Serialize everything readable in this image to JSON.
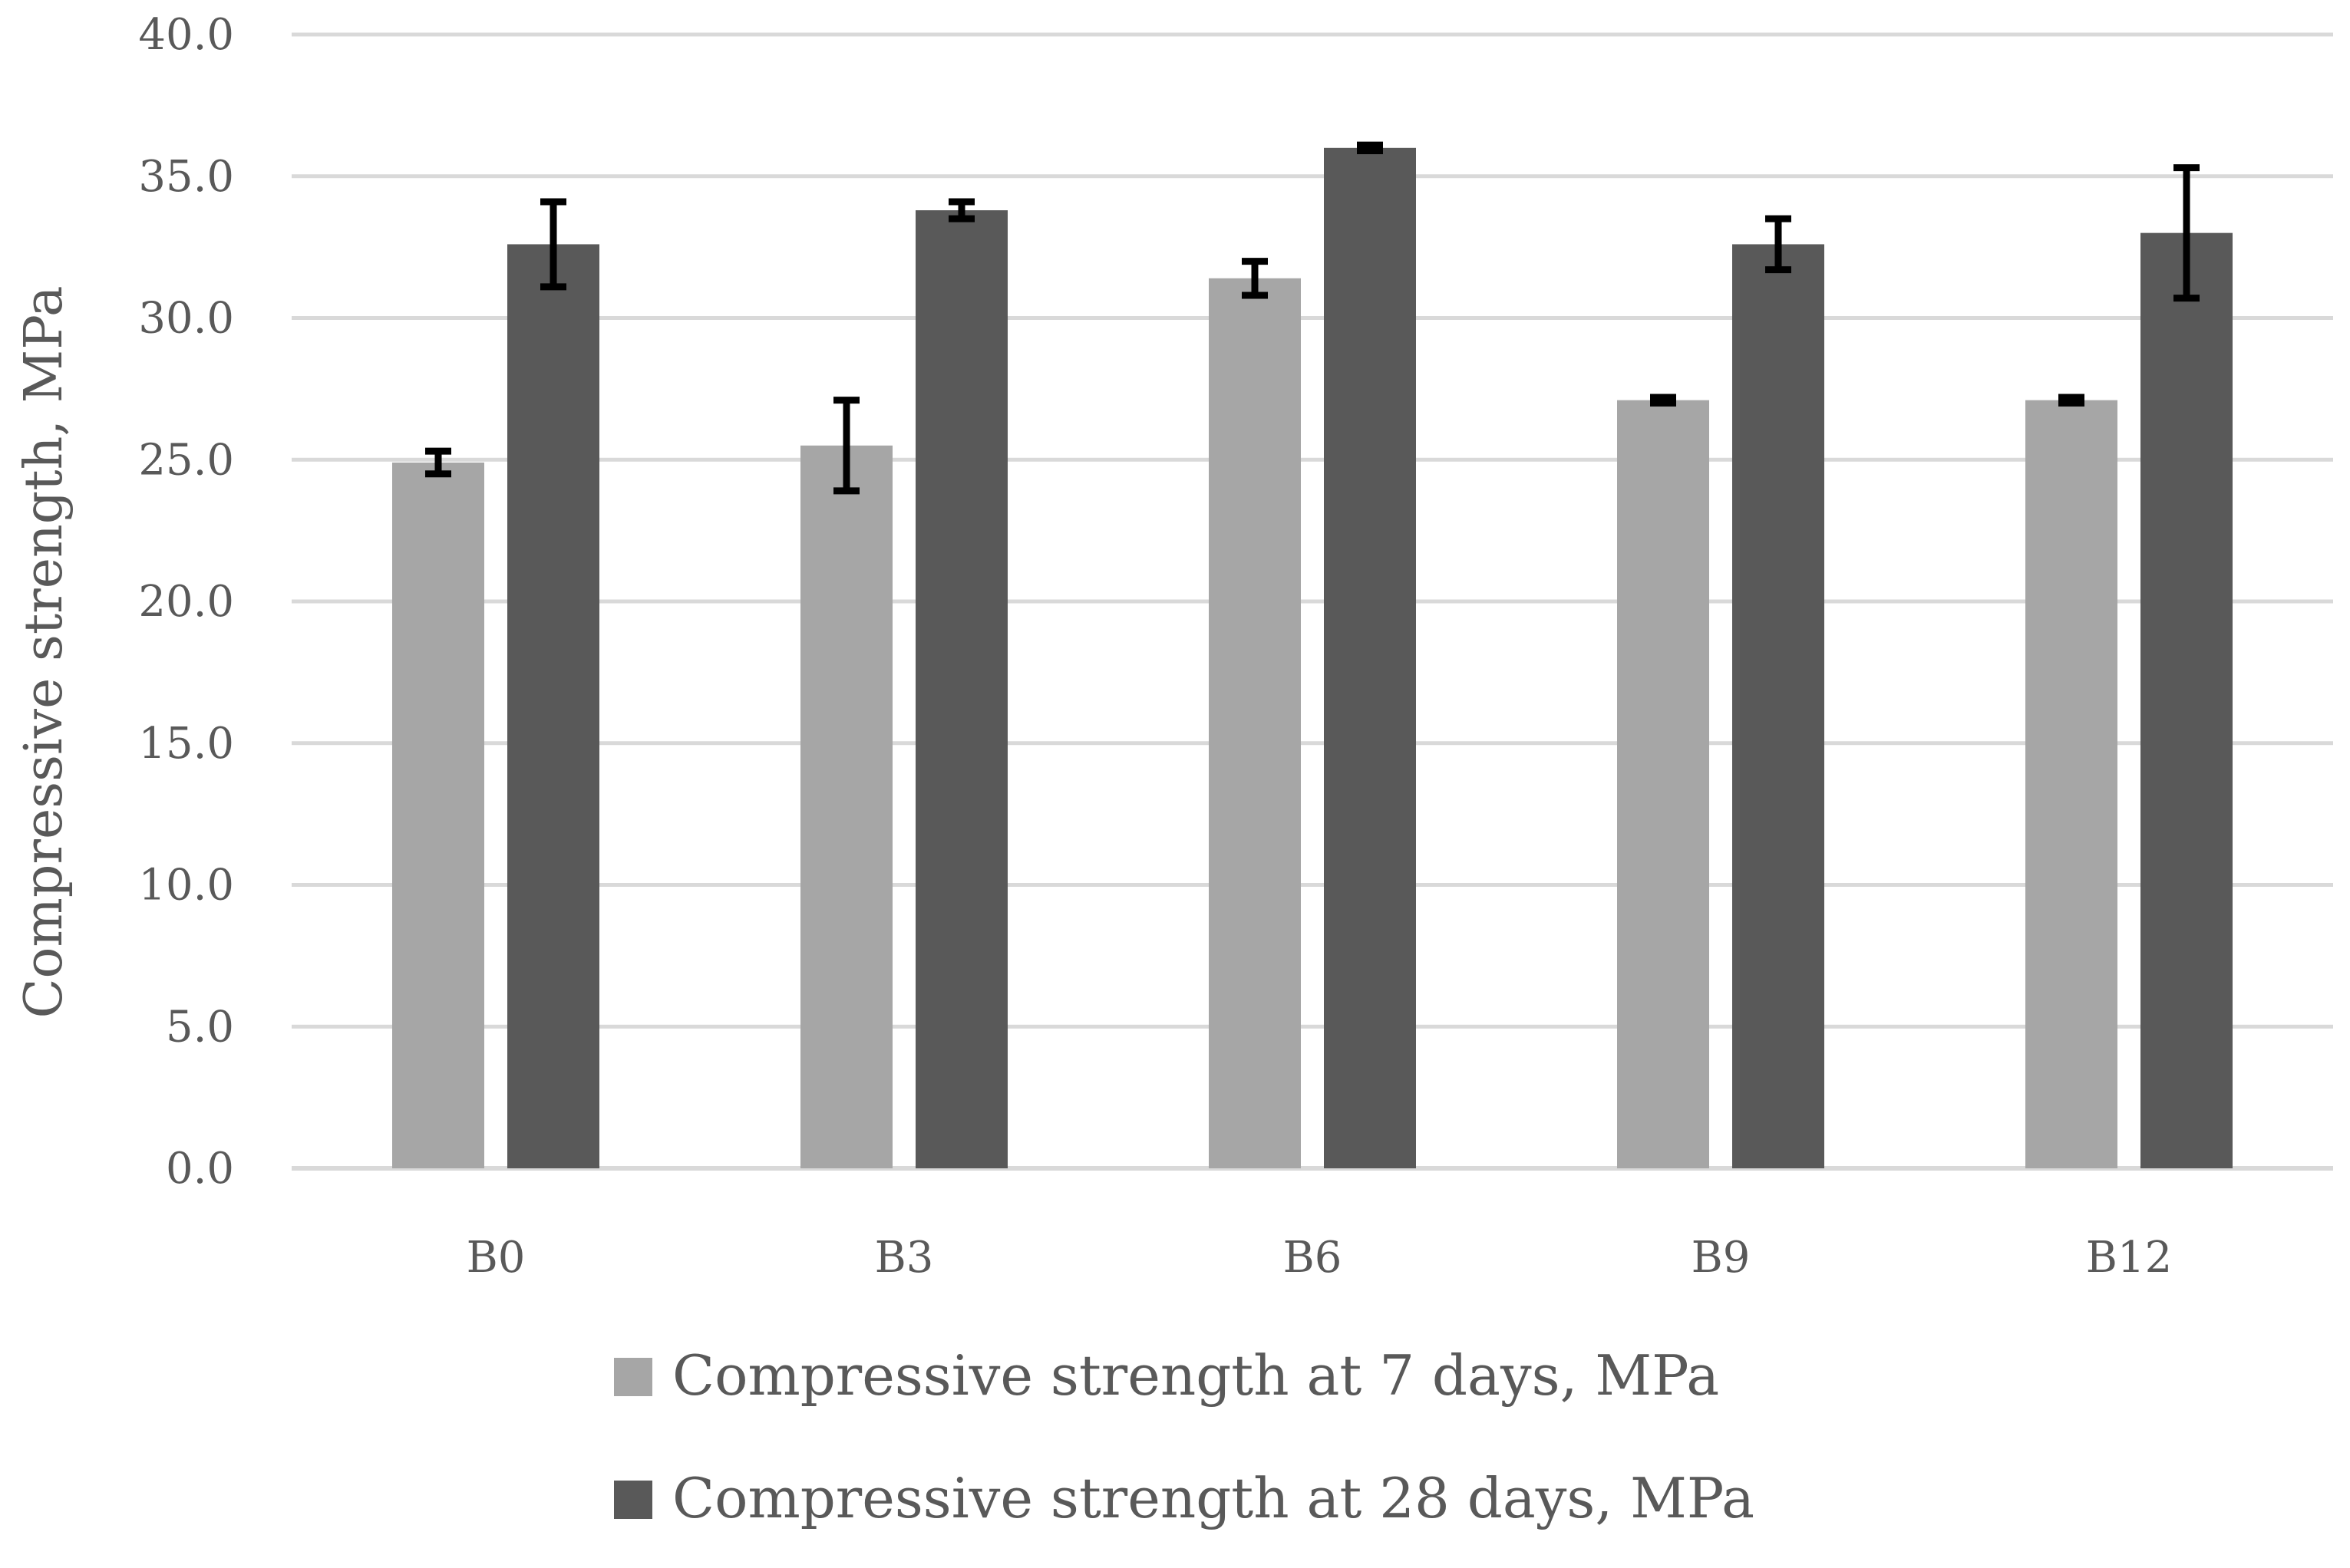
{
  "chart_data": {
    "type": "bar",
    "title": "",
    "xlabel": "",
    "ylabel": "Compressive strength, MPa",
    "ylim": [
      0,
      40
    ],
    "ytick_step": 5,
    "ytick_labels": [
      "0.0",
      "5.0",
      "10.0",
      "15.0",
      "20.0",
      "25.0",
      "30.0",
      "35.0",
      "40.0"
    ],
    "grid": true,
    "legend_position": "bottom",
    "categories": [
      "B0",
      "B3",
      "B6",
      "B9",
      "B12"
    ],
    "series": [
      {
        "name": "Compressive strength at 7 days, MPa",
        "color": "#a6a6a6",
        "values": [
          24.9,
          25.5,
          31.4,
          27.1,
          27.1
        ],
        "errors": [
          0.4,
          1.6,
          0.6,
          0.1,
          0.1
        ]
      },
      {
        "name": "Compressive strength at 28 days, MPa",
        "color": "#595959",
        "values": [
          32.6,
          33.8,
          36.0,
          32.6,
          33.0
        ],
        "errors": [
          1.5,
          0.3,
          0.1,
          0.9,
          2.3
        ]
      }
    ]
  }
}
